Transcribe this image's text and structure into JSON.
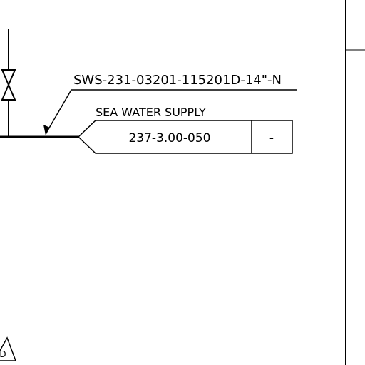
{
  "line_number": "SWS-231-03201-115201D-14\"-N",
  "service_label": "SEA WATER SUPPLY",
  "offpage_connector": {
    "drawing_ref": "237-3.00-050",
    "sheet_ref": "-"
  },
  "revision_triangle_mark": "D"
}
